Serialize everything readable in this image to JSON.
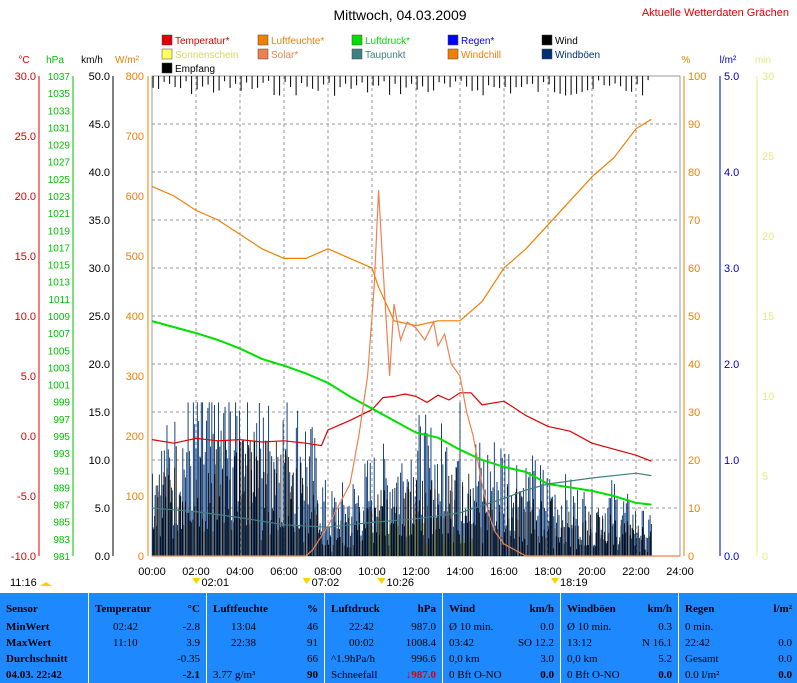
{
  "title": "Mittwoch, 04.03.2009",
  "link_text": "Aktuelle Wetterdaten Grächen",
  "legend": [
    {
      "label": "Temperatur*",
      "color": "#e00000"
    },
    {
      "label": "Luftfeuchte*",
      "color": "#f08000"
    },
    {
      "label": "Luftdruck*",
      "color": "#00e000"
    },
    {
      "label": "Regen*",
      "color": "#0000ff"
    },
    {
      "label": "Wind",
      "color": "#000000"
    },
    {
      "label": "Sonnenschein",
      "color": "#ffff60"
    },
    {
      "label": "Solar*",
      "color": "#f08050"
    },
    {
      "label": "Taupunkt",
      "color": "#408080"
    },
    {
      "label": "Windchill",
      "color": "#f08000"
    },
    {
      "label": "Windböen",
      "color": "#003070"
    },
    {
      "label": "Empfang",
      "color": "#000000"
    }
  ],
  "axis_titles": {
    "temp": "°C",
    "press": "hPa",
    "wind": "km/h",
    "solar": "W/m²",
    "hum": "%",
    "rain": "l/m²",
    "sun": "min"
  },
  "axis_colors": {
    "temp": "#e00000",
    "press": "#00c000",
    "wind": "#000000",
    "solar": "#f08000",
    "hum": "#f08000",
    "rain": "#0000c0",
    "sun": "#e8e880"
  },
  "chart_data": {
    "type": "line",
    "x_range": [
      0,
      24
    ],
    "x_ticks": [
      "00:00",
      "02:00",
      "04:00",
      "06:00",
      "08:00",
      "10:00",
      "12:00",
      "14:00",
      "16:00",
      "18:00",
      "20:00",
      "22:00",
      "24:00"
    ],
    "axes": {
      "temp": {
        "range": [
          -10,
          30
        ],
        "ticks": [
          "30.0",
          "25.0",
          "20.0",
          "15.0",
          "10.0",
          "5.0",
          "0.0",
          "-5.0",
          "-10.0"
        ]
      },
      "press": {
        "range": [
          981,
          1037
        ],
        "ticks": [
          "1037",
          "1035",
          "1033",
          "1031",
          "1029",
          "1027",
          "1025",
          "1023",
          "1021",
          "1019",
          "1017",
          "1015",
          "1013",
          "1011",
          "1009",
          "1007",
          "1005",
          "1003",
          "1001",
          "999",
          "997",
          "995",
          "993",
          "991",
          "989",
          "987",
          "985",
          "983",
          "981"
        ]
      },
      "wind": {
        "range": [
          0,
          50
        ],
        "ticks": [
          "50.0",
          "45.0",
          "40.0",
          "35.0",
          "30.0",
          "25.0",
          "20.0",
          "15.0",
          "10.0",
          "5.0",
          "0.0"
        ]
      },
      "solar": {
        "range": [
          0,
          800
        ],
        "ticks": [
          "800",
          "700",
          "600",
          "500",
          "400",
          "300",
          "200",
          "100",
          "0"
        ]
      },
      "hum": {
        "range": [
          0,
          100
        ],
        "ticks": [
          "100",
          "90",
          "80",
          "70",
          "60",
          "50",
          "40",
          "30",
          "20",
          "10",
          "0"
        ]
      },
      "rain": {
        "range": [
          0,
          5
        ],
        "ticks": [
          "5.0",
          "4.0",
          "3.0",
          "2.0",
          "1.0",
          "0.0"
        ]
      },
      "sun": {
        "range": [
          0,
          30
        ],
        "ticks": [
          "30",
          "25",
          "20",
          "15",
          "10",
          "5",
          "0"
        ]
      }
    },
    "series": [
      {
        "name": "Temperatur",
        "axis": "temp",
        "color": "#e00000",
        "x": [
          0,
          1,
          2,
          3,
          4,
          5,
          6,
          7,
          7.7,
          8,
          9,
          10,
          10.5,
          11,
          11.5,
          12,
          12.5,
          13,
          13.5,
          14,
          14.5,
          15,
          16,
          17,
          18,
          19,
          20,
          21,
          22,
          22.7
        ],
        "y": [
          -0.3,
          -0.6,
          -0.2,
          -0.4,
          -0.3,
          -0.5,
          -0.4,
          -0.6,
          -0.8,
          0.5,
          1.3,
          2.2,
          3.2,
          3.3,
          3.5,
          3.3,
          2.8,
          3.4,
          3.0,
          3.6,
          3.6,
          2.6,
          2.9,
          1.7,
          0.8,
          0.4,
          -0.6,
          -1.1,
          -1.6,
          -2.1
        ]
      },
      {
        "name": "Luftfeuchte",
        "axis": "hum",
        "color": "#f08000",
        "x": [
          0,
          1,
          2,
          3,
          4,
          5,
          6,
          7,
          8,
          9,
          10,
          10.3,
          11,
          12,
          13,
          14,
          15,
          16,
          17,
          18,
          19,
          20,
          21,
          22,
          22.7
        ],
        "y": [
          77,
          75,
          72,
          70,
          67,
          64,
          62,
          62,
          64,
          62,
          60,
          56,
          49,
          48,
          49,
          49,
          53,
          60,
          64,
          69,
          74,
          79,
          83,
          89,
          91
        ]
      },
      {
        "name": "Luftdruck",
        "axis": "press",
        "color": "#00e000",
        "x": [
          0,
          1,
          2,
          3,
          4,
          5,
          6,
          7,
          8,
          9,
          10,
          11,
          12,
          13,
          14,
          15,
          16,
          17,
          18,
          19,
          20,
          21,
          22,
          22.7
        ],
        "y": [
          1008.4,
          1007.7,
          1007.0,
          1006.2,
          1005.2,
          1004.0,
          1003.2,
          1002.3,
          1001.2,
          999.6,
          998.2,
          996.8,
          995.4,
          994.8,
          993.4,
          992.2,
          991.4,
          990.8,
          989.4,
          989.0,
          988.6,
          988.0,
          987.2,
          987.0
        ]
      },
      {
        "name": "Solar",
        "axis": "solar",
        "color": "#f08050",
        "x": [
          0,
          7,
          7.3,
          8,
          9,
          9.4,
          9.8,
          10.1,
          10.3,
          10.5,
          10.8,
          11,
          11.3,
          11.6,
          12,
          12.4,
          12.8,
          13,
          13.3,
          13.6,
          14,
          14.3,
          14.6,
          15,
          15.3,
          15.6,
          16,
          16.5,
          17,
          24
        ],
        "y": [
          0,
          0,
          10,
          50,
          120,
          200,
          300,
          450,
          610,
          480,
          300,
          420,
          360,
          390,
          380,
          360,
          390,
          350,
          370,
          320,
          300,
          240,
          200,
          120,
          70,
          40,
          20,
          10,
          0,
          0
        ]
      },
      {
        "name": "Taupunkt",
        "axis": "temp",
        "color": "#408080",
        "x": [
          0,
          2,
          4,
          6,
          8,
          10,
          12,
          14,
          16,
          17,
          18,
          20,
          22,
          22.7
        ],
        "y": [
          -6.0,
          -6.3,
          -6.8,
          -7.4,
          -7.6,
          -7.2,
          -6.9,
          -6.4,
          -5.2,
          -4.5,
          -4.0,
          -3.5,
          -3.1,
          -3.3
        ]
      },
      {
        "name": "Windböen",
        "axis": "wind",
        "color": "#003070",
        "x": [
          0,
          1,
          2,
          3,
          4,
          5,
          6,
          7,
          8,
          9,
          10,
          11,
          12,
          13,
          14,
          15,
          16,
          17,
          18,
          19,
          20,
          21,
          22,
          22.7
        ],
        "y": [
          9,
          11,
          14,
          13,
          15,
          12,
          13,
          12,
          5,
          6,
          8,
          9,
          11,
          10,
          12,
          9,
          10,
          8,
          7,
          6,
          5,
          6,
          4,
          3
        ]
      },
      {
        "name": "Wind",
        "axis": "wind",
        "color": "#000000",
        "x": [
          0,
          1,
          2,
          3,
          4,
          5,
          6,
          7,
          8,
          9,
          10,
          11,
          12,
          13,
          14,
          15,
          16,
          17,
          18,
          19,
          20,
          21,
          22,
          22.7
        ],
        "y": [
          6,
          7,
          9,
          8,
          10,
          8,
          8,
          7,
          2,
          3,
          4,
          5,
          6,
          5,
          6,
          5,
          5,
          4,
          4,
          3,
          3,
          3,
          2,
          2
        ]
      }
    ],
    "annotations": [
      {
        "text": "11:16",
        "x_time": null
      },
      {
        "text": "02:01",
        "x_time": 2.02
      },
      {
        "text": "07:02",
        "x_time": 7.03
      },
      {
        "text": "10:26",
        "x_time": 10.43
      },
      {
        "text": "18:19",
        "x_time": 18.32
      }
    ]
  },
  "stats": {
    "row_labels": [
      "Sensor",
      "MinWert",
      "MaxWert",
      "Durchschnitt",
      "04.03. 22:42"
    ],
    "columns": [
      {
        "title": "Temperatur",
        "unit": "°C",
        "rows": [
          [
            "02:42",
            "-2.8"
          ],
          [
            "11:10",
            "3.9"
          ],
          [
            "",
            "-0.35"
          ],
          [
            "",
            "-2.1"
          ]
        ]
      },
      {
        "title": "Luftfeuchte",
        "unit": "%",
        "rows": [
          [
            "13:04",
            "46"
          ],
          [
            "22:38",
            "91"
          ],
          [
            "",
            "66"
          ],
          [
            "3.77 g/m³",
            "90"
          ]
        ]
      },
      {
        "title": "Luftdruck",
        "unit": "hPa",
        "rows": [
          [
            "22:42",
            "987.0"
          ],
          [
            "00:02",
            "1008.4"
          ],
          [
            "^1.9hPa/h",
            "996.6"
          ],
          [
            "Schneefall",
            "987.0"
          ]
        ]
      },
      {
        "title": "Wind",
        "unit": "km/h",
        "rows": [
          [
            "Ø 10 min.",
            "0.0"
          ],
          [
            "03:42",
            "SO 12.2"
          ],
          [
            "0,0 km",
            "3.0"
          ],
          [
            "0 Bft O-NO",
            "0.0"
          ]
        ]
      },
      {
        "title": "Windböen",
        "unit": "km/h",
        "rows": [
          [
            "Ø 10 min.",
            "0.3"
          ],
          [
            "13:12",
            "N 16.1"
          ],
          [
            "0,0 km",
            "5.2"
          ],
          [
            "0 Bft O-NO",
            "0.0"
          ]
        ]
      },
      {
        "title": "Regen",
        "unit": "l/m²",
        "rows": [
          [
            "0 min.",
            ""
          ],
          [
            "22:42",
            "0.0"
          ],
          [
            "Gesamt",
            "0.0"
          ],
          [
            "0.0 l/m²",
            "0.0"
          ]
        ]
      }
    ]
  }
}
